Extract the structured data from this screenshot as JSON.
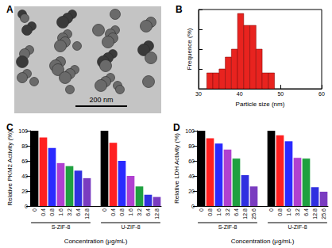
{
  "chart_data": [
    {
      "type": "image",
      "title": "A",
      "annotations": [
        "200 nm"
      ]
    },
    {
      "type": "histogram",
      "title": "B",
      "xlabel": "Particle size (nm)",
      "ylabel": "Frequence (%)",
      "bins": [
        32,
        33.5,
        35,
        36.5,
        38,
        39.5,
        41,
        42.5,
        44,
        45.5,
        47,
        48.5
      ],
      "counts": [
        4,
        4,
        5,
        8,
        10,
        19,
        16,
        16,
        10,
        4,
        4
      ],
      "color": "#e8231f",
      "xlim": [
        30,
        60
      ],
      "xticks": [
        30,
        40,
        50,
        60
      ],
      "ylim": [
        0,
        20
      ],
      "yticks": [
        0,
        5,
        10,
        15,
        20
      ],
      "tick_labels": "x"
    },
    {
      "type": "bar",
      "title": "C",
      "ylabel": "Relative PKM2 Activity (%)",
      "xlabel": "Concentration (μg/mL)",
      "categories": [
        "0",
        "0.4",
        "0.8",
        "1.6",
        "3.2",
        "6.4",
        "12.8",
        null,
        "0",
        "0.4",
        "0.8",
        "1.6",
        "3.2",
        "6.4",
        "12.8"
      ],
      "values": [
        100,
        91,
        77,
        57,
        53,
        47,
        37,
        null,
        100,
        84,
        60,
        40,
        26,
        15,
        12
      ],
      "colors": [
        "#000000",
        "#ff2020",
        "#2a2aff",
        "#b040d0",
        "#1fa040",
        "#3030e0",
        "#7a3cc0",
        null,
        "#000000",
        "#ff2020",
        "#2a2aff",
        "#b040d0",
        "#1fa040",
        "#3030e0",
        "#7a3cc0"
      ],
      "group_labels": [
        "S-ZIF-8",
        "U-ZIF-8"
      ],
      "ylim": [
        0,
        100
      ],
      "yticks": [
        0,
        20,
        40,
        60,
        80,
        100
      ]
    },
    {
      "type": "bar",
      "title": "D",
      "ylabel": "Relative LDH Activity (%)",
      "xlabel": "Concentration (μg/mL)",
      "categories": [
        "0",
        "0.8",
        "1.6",
        "3.2",
        "6.4",
        "12.8",
        "25.6",
        null,
        "0",
        "0.8",
        "1.6",
        "3.2",
        "6.4",
        "12.8",
        "25.6"
      ],
      "values": [
        100,
        90,
        83,
        75,
        63,
        41,
        26,
        null,
        100,
        94,
        86,
        64,
        63,
        25,
        19
      ],
      "colors": [
        "#000000",
        "#ff2020",
        "#2a2aff",
        "#b040d0",
        "#1fa040",
        "#3030e0",
        "#7a3cc0",
        null,
        "#000000",
        "#ff2020",
        "#2a2aff",
        "#b040d0",
        "#1fa040",
        "#3030e0",
        "#7a3cc0"
      ],
      "group_labels": [
        "S-ZIF-8",
        "U-ZIF-8"
      ],
      "ylim": [
        0,
        100
      ],
      "yticks": [
        0,
        20,
        40,
        60,
        80,
        100
      ]
    }
  ]
}
